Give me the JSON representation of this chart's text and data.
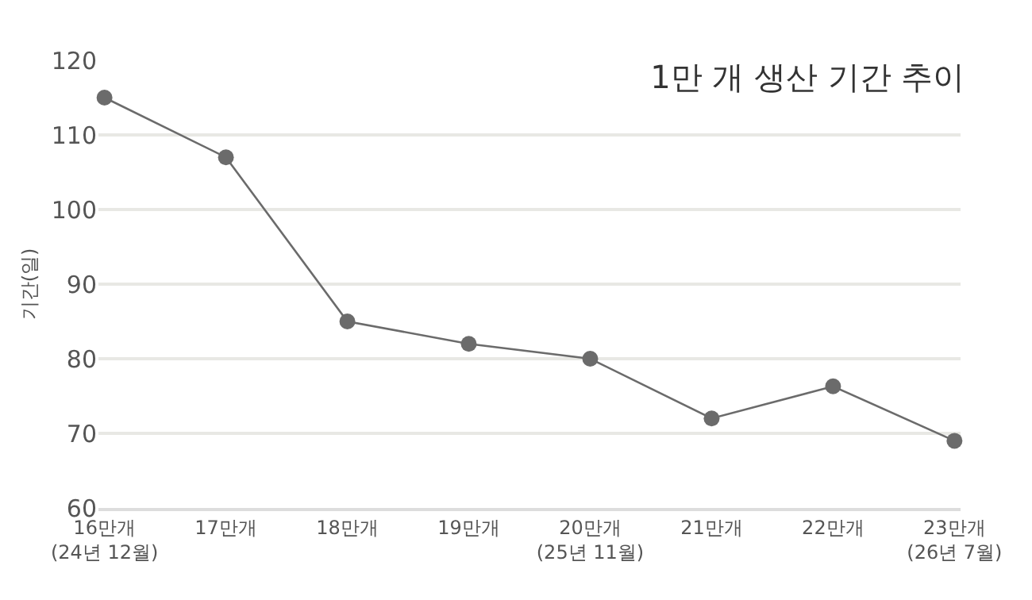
{
  "chart_data": {
    "type": "line",
    "title": "1만 개 생산 기간 추이",
    "ylabel": "기간(일)",
    "categories": [
      "16만개\n(24년 12월)",
      "17만개",
      "18만개",
      "19만개",
      "20만개\n(25년 11월)",
      "21만개",
      "22만개",
      "23만개\n(26년 7월)"
    ],
    "series": [
      {
        "color": "#6b6b6b",
        "values": [
          115,
          107,
          85,
          82,
          80,
          72,
          76.3,
          69
        ]
      }
    ],
    "ylim": [
      60,
      120
    ],
    "yticks": [
      60,
      70,
      80,
      90,
      100,
      110,
      120
    ],
    "grid": "y",
    "marker": "circle",
    "line_style": "solid"
  }
}
